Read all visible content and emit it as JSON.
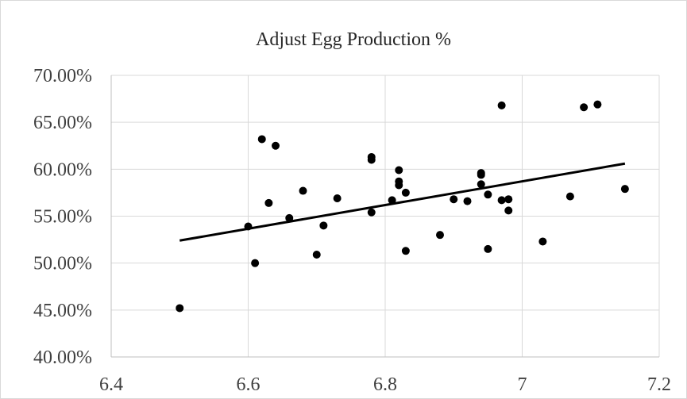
{
  "chart_data": {
    "type": "scatter",
    "title": "Adjust Egg Production %",
    "xlabel": "",
    "ylabel": "",
    "xlim": [
      6.4,
      7.2
    ],
    "ylim": [
      0.4,
      0.7
    ],
    "x_ticks": [
      6.4,
      6.6,
      6.8,
      7,
      7.2
    ],
    "x_tick_labels": [
      "6.4",
      "6.6",
      "6.8",
      "7",
      "7.2"
    ],
    "y_ticks": [
      0.4,
      0.45,
      0.5,
      0.55,
      0.6,
      0.65,
      0.7
    ],
    "y_tick_labels": [
      "40.00%",
      "45.00%",
      "50.00%",
      "55.00%",
      "60.00%",
      "65.00%",
      "70.00%"
    ],
    "grid": true,
    "legend": "none",
    "series": [
      {
        "points": [
          {
            "x": 6.5,
            "y": 0.452
          },
          {
            "x": 6.6,
            "y": 0.539
          },
          {
            "x": 6.61,
            "y": 0.5
          },
          {
            "x": 6.62,
            "y": 0.632
          },
          {
            "x": 6.63,
            "y": 0.564
          },
          {
            "x": 6.64,
            "y": 0.625
          },
          {
            "x": 6.66,
            "y": 0.548
          },
          {
            "x": 6.68,
            "y": 0.577
          },
          {
            "x": 6.7,
            "y": 0.509
          },
          {
            "x": 6.71,
            "y": 0.54
          },
          {
            "x": 6.73,
            "y": 0.569
          },
          {
            "x": 6.78,
            "y": 0.613
          },
          {
            "x": 6.78,
            "y": 0.61
          },
          {
            "x": 6.78,
            "y": 0.554
          },
          {
            "x": 6.81,
            "y": 0.567
          },
          {
            "x": 6.82,
            "y": 0.599
          },
          {
            "x": 6.82,
            "y": 0.587
          },
          {
            "x": 6.82,
            "y": 0.583
          },
          {
            "x": 6.83,
            "y": 0.575
          },
          {
            "x": 6.83,
            "y": 0.513
          },
          {
            "x": 6.88,
            "y": 0.53
          },
          {
            "x": 6.9,
            "y": 0.568
          },
          {
            "x": 6.92,
            "y": 0.566
          },
          {
            "x": 6.94,
            "y": 0.596
          },
          {
            "x": 6.94,
            "y": 0.594
          },
          {
            "x": 6.94,
            "y": 0.584
          },
          {
            "x": 6.95,
            "y": 0.573
          },
          {
            "x": 6.95,
            "y": 0.515
          },
          {
            "x": 6.97,
            "y": 0.668
          },
          {
            "x": 6.97,
            "y": 0.567
          },
          {
            "x": 6.98,
            "y": 0.568
          },
          {
            "x": 6.98,
            "y": 0.556
          },
          {
            "x": 7.03,
            "y": 0.523
          },
          {
            "x": 7.07,
            "y": 0.571
          },
          {
            "x": 7.09,
            "y": 0.666
          },
          {
            "x": 7.11,
            "y": 0.669
          },
          {
            "x": 7.15,
            "y": 0.579
          }
        ],
        "color": "#000000"
      }
    ],
    "trendline": {
      "type": "linear",
      "x": [
        6.5,
        7.15
      ],
      "y": [
        0.524,
        0.606
      ],
      "color": "#000000"
    }
  }
}
